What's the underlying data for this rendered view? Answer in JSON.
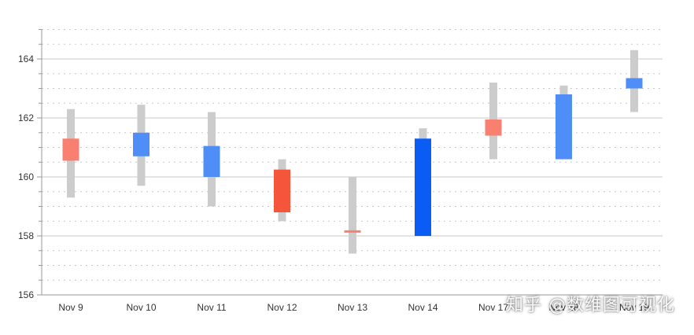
{
  "chart_data": {
    "type": "ohlc-box",
    "title": "",
    "xlabel": "",
    "ylabel": "",
    "ylim": [
      156,
      165
    ],
    "y_ticks": [
      156,
      158,
      160,
      162,
      164
    ],
    "grid": true,
    "legend": "none",
    "categories": [
      "Nov 9",
      "Nov 10",
      "Nov 11",
      "Nov 12",
      "Nov 13",
      "Nov 14",
      "Nov 17",
      "Nov 18",
      "Nov 19"
    ],
    "points": [
      {
        "date": "Nov 9",
        "low": 159.3,
        "high": 162.3,
        "open": 161.3,
        "close": 160.55,
        "color": "#f88070"
      },
      {
        "date": "Nov 10",
        "low": 159.7,
        "high": 162.45,
        "open": 160.7,
        "close": 161.5,
        "color": "#4f8ef7"
      },
      {
        "date": "Nov 11",
        "low": 159.0,
        "high": 162.2,
        "open": 160.0,
        "close": 161.05,
        "color": "#4f8ef7"
      },
      {
        "date": "Nov 12",
        "low": 158.5,
        "high": 160.6,
        "open": 160.25,
        "close": 158.8,
        "color": "#f5553a"
      },
      {
        "date": "Nov 13",
        "low": 157.4,
        "high": 160.0,
        "open": 158.18,
        "close": 158.12,
        "color": "#f88070"
      },
      {
        "date": "Nov 14",
        "low": 158.0,
        "high": 161.65,
        "open": 158.0,
        "close": 161.3,
        "color": "#0a5cf5"
      },
      {
        "date": "Nov 17",
        "low": 160.6,
        "high": 163.2,
        "open": 161.95,
        "close": 161.4,
        "color": "#f88070"
      },
      {
        "date": "Nov 18",
        "low": 160.6,
        "high": 163.1,
        "open": 160.6,
        "close": 162.8,
        "color": "#4f8ef7"
      },
      {
        "date": "Nov 19",
        "low": 162.2,
        "high": 164.3,
        "open": 163.0,
        "close": 163.35,
        "color": "#4f8ef7"
      }
    ],
    "colors": {
      "wick": "#cccccc",
      "grid_major": "#c8c8c8",
      "grid_minor": "#c8c8c8",
      "axis": "#999999",
      "text": "#333333"
    }
  },
  "watermark": {
    "text": "知乎 @数维图可视化"
  }
}
